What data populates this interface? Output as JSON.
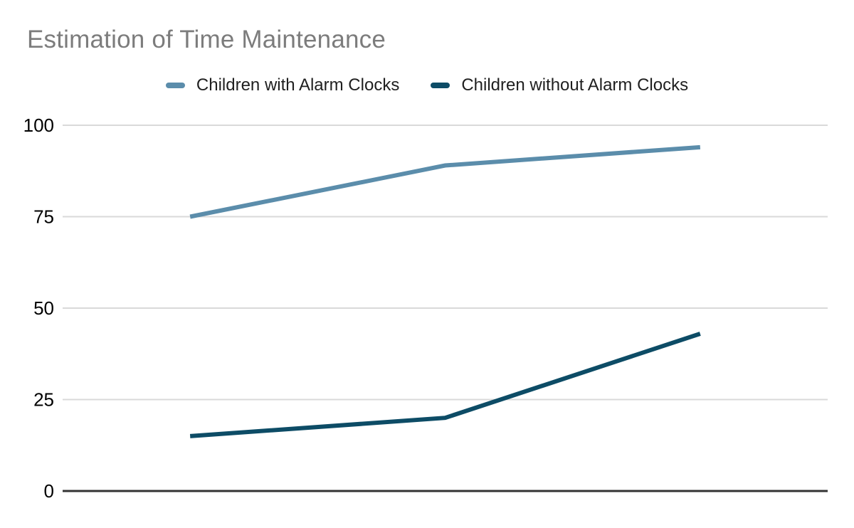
{
  "title": "Estimation of Time Maintenance",
  "chart_data": {
    "type": "line",
    "title": "Estimation of Time Maintenance",
    "series": [
      {
        "name": "Children with Alarm Clocks",
        "color": "#5b8dab",
        "values": [
          75,
          89,
          94
        ]
      },
      {
        "name": "Children without Alarm Clocks",
        "color": "#0d4c66",
        "values": [
          15,
          20,
          43
        ]
      }
    ],
    "x_tick_labels": [],
    "xlabel": "",
    "ylabel": "",
    "ylim": [
      0,
      100
    ],
    "yticks": [
      0,
      25,
      50,
      75,
      100
    ],
    "grid": true,
    "legend_position": "top-center",
    "line_width": 6
  },
  "colors": {
    "background": "#ffffff",
    "title_text": "#7c7c7c",
    "legend_text": "#1f1f1f",
    "tick_label": "#000000",
    "gridline": "#d9d9d9",
    "axis_line": "#333333"
  }
}
